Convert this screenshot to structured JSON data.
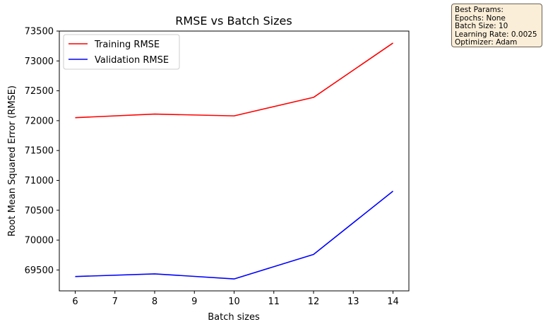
{
  "chart_data": {
    "type": "line",
    "title": "RMSE vs Batch Sizes",
    "xlabel": "Batch sizes",
    "ylabel": "Root Mean Squared Error (RMSE)",
    "x": [
      6,
      8,
      10,
      12,
      14
    ],
    "xlim": [
      5.6,
      14.4
    ],
    "ylim": [
      69150,
      73500
    ],
    "xticks": [
      "6",
      "7",
      "8",
      "9",
      "10",
      "11",
      "12",
      "13",
      "14"
    ],
    "xtick_values": [
      6,
      7,
      8,
      9,
      10,
      11,
      12,
      13,
      14
    ],
    "yticks": [
      "69500",
      "70000",
      "70500",
      "71000",
      "71500",
      "72000",
      "72500",
      "73000",
      "73500"
    ],
    "ytick_values": [
      69500,
      70000,
      70500,
      71000,
      71500,
      72000,
      72500,
      73000,
      73500
    ],
    "legend_position": "top-left",
    "grid": false,
    "series": [
      {
        "name": "Training RMSE",
        "color": "#ff0000",
        "values": [
          72050,
          72110,
          72080,
          72390,
          73300
        ]
      },
      {
        "name": "Validation RMSE",
        "color": "#0000ff",
        "values": [
          69390,
          69435,
          69350,
          69760,
          70820
        ]
      }
    ]
  },
  "params": {
    "header": "Best Params:",
    "epochs": "Epochs: None",
    "batch_size": "Batch Size: 10",
    "learning_rate": "Learning Rate: 0.0025",
    "optimizer": "Optimizer: Adam"
  }
}
